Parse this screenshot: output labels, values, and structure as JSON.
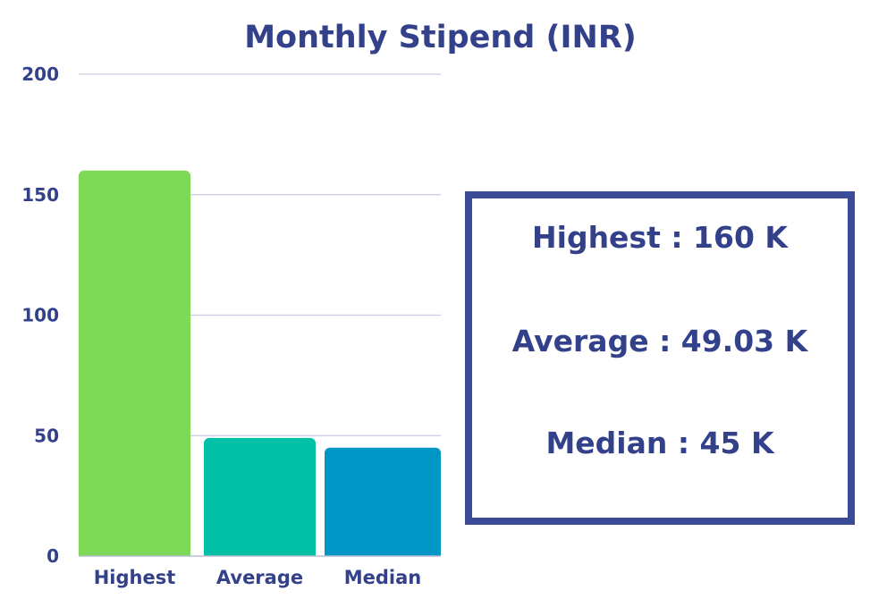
{
  "chart_data": {
    "type": "bar",
    "title": "Monthly Stipend (INR)",
    "categories": [
      "Highest",
      "Average",
      "Median"
    ],
    "values": [
      160,
      49.03,
      45
    ],
    "colors": [
      "#7ed957",
      "#00c1a5",
      "#0097c6"
    ],
    "ylim": [
      0,
      200
    ],
    "yticks": [
      0,
      50,
      100,
      150,
      200
    ],
    "grid": true,
    "xlabel": "",
    "ylabel": ""
  },
  "summary": {
    "lines": [
      "Highest : 160 K",
      "Average : 49.03 K",
      "Median : 45 K"
    ]
  }
}
